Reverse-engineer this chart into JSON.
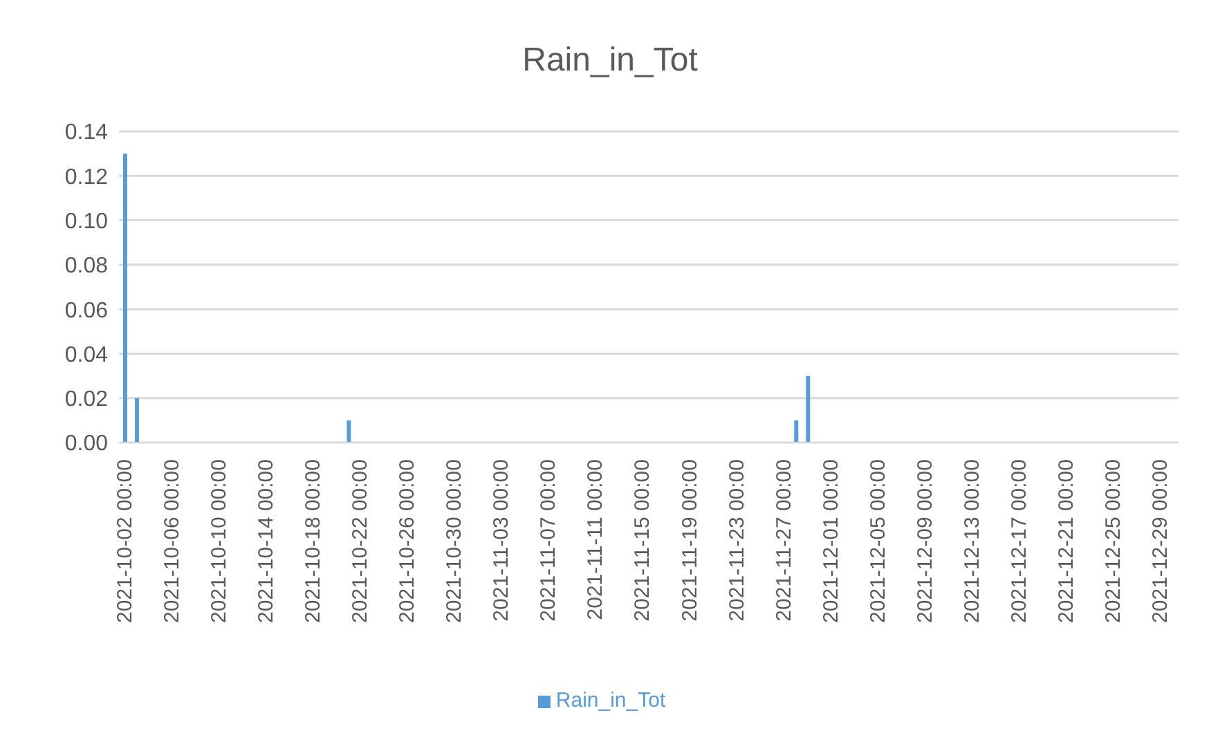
{
  "chart_data": {
    "type": "bar",
    "title": "Rain_in_Tot",
    "categories": [
      "2021-10-02 00:00",
      null,
      null,
      null,
      "2021-10-06 00:00",
      null,
      null,
      null,
      "2021-10-10 00:00",
      null,
      null,
      null,
      "2021-10-14 00:00",
      null,
      null,
      null,
      "2021-10-18 00:00",
      null,
      null,
      null,
      "2021-10-22 00:00",
      null,
      null,
      null,
      "2021-10-26 00:00",
      null,
      null,
      null,
      "2021-10-30 00:00",
      null,
      null,
      null,
      "2021-11-03 00:00",
      null,
      null,
      null,
      "2021-11-07 00:00",
      null,
      null,
      null,
      "2021-11-11 00:00",
      null,
      null,
      null,
      "2021-11-15 00:00",
      null,
      null,
      null,
      "2021-11-19 00:00",
      null,
      null,
      null,
      "2021-11-23 00:00",
      null,
      null,
      null,
      "2021-11-27 00:00",
      null,
      null,
      null,
      "2021-12-01 00:00",
      null,
      null,
      null,
      "2021-12-05 00:00",
      null,
      null,
      null,
      "2021-12-09 00:00",
      null,
      null,
      null,
      "2021-12-13 00:00",
      null,
      null,
      null,
      "2021-12-17 00:00",
      null,
      null,
      null,
      "2021-12-21 00:00",
      null,
      null,
      null,
      "2021-12-25 00:00",
      null,
      null,
      null,
      "2021-12-29 00:00",
      null
    ],
    "series": [
      {
        "name": "Rain_in_Tot",
        "color": "#5b9bd5",
        "values": [
          0.13,
          0.02,
          0,
          0,
          0,
          0,
          0,
          0,
          0,
          0,
          0,
          0,
          0,
          0,
          0,
          0,
          0,
          0,
          0,
          0.01,
          0,
          0,
          0,
          0,
          0,
          0,
          0,
          0,
          0,
          0,
          0,
          0,
          0,
          0,
          0,
          0,
          0,
          0,
          0,
          0,
          0,
          0,
          0,
          0,
          0,
          0,
          0,
          0,
          0,
          0,
          0,
          0,
          0,
          0,
          0,
          0,
          0,
          0.01,
          0.03,
          0,
          0,
          0,
          0,
          0,
          0,
          0,
          0,
          0,
          0,
          0,
          0,
          0,
          0,
          0,
          0,
          0,
          0,
          0,
          0,
          0,
          0,
          0,
          0,
          0,
          0,
          0,
          0,
          0,
          0,
          0
        ]
      }
    ],
    "ylim": [
      0,
      0.14
    ],
    "yticks": [
      {
        "value": 0,
        "label": "0.00"
      },
      {
        "value": 0.02,
        "label": "0.02"
      },
      {
        "value": 0.04,
        "label": "0.04"
      },
      {
        "value": 0.06,
        "label": "0.06"
      },
      {
        "value": 0.08,
        "label": "0.08"
      },
      {
        "value": 0.1,
        "label": "0.10"
      },
      {
        "value": 0.12,
        "label": "0.12"
      },
      {
        "value": 0.14,
        "label": "0.14"
      }
    ],
    "grid": "y",
    "legend": "bottom"
  }
}
